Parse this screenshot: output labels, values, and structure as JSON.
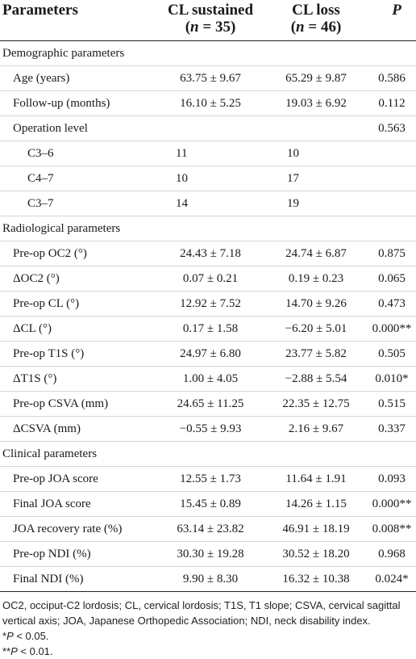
{
  "header": {
    "parameters": "Parameters",
    "cl_sustained": "CL sustained",
    "cl_sustained_n": "(n = 35)",
    "cl_loss": "CL loss",
    "cl_loss_n": "(n = 46)",
    "p": "P"
  },
  "rows": [
    {
      "label": "Demographic parameters",
      "v1": "",
      "v2": "",
      "p": ""
    },
    {
      "label": "Age (years)",
      "v1": "63.75 ± 9.67",
      "v2": "65.29 ± 9.87",
      "p": "0.586"
    },
    {
      "label": "Follow-up (months)",
      "v1": "16.10 ± 5.25",
      "v2": "19.03 ± 6.92",
      "p": "0.112"
    },
    {
      "label": "Operation level",
      "v1": "",
      "v2": "",
      "p": "0.563"
    },
    {
      "label": "C3–6",
      "v1": "11",
      "v2": "10",
      "p": ""
    },
    {
      "label": "C4–7",
      "v1": "10",
      "v2": "17",
      "p": ""
    },
    {
      "label": "C3–7",
      "v1": "14",
      "v2": "19",
      "p": ""
    },
    {
      "label": "Radiological parameters",
      "v1": "",
      "v2": "",
      "p": ""
    },
    {
      "label": "Pre-op OC2 (°)",
      "v1": "24.43 ± 7.18",
      "v2": "24.74 ± 6.87",
      "p": "0.875"
    },
    {
      "label": "ΔOC2 (°)",
      "v1": "0.07 ± 0.21",
      "v2": "0.19 ± 0.23",
      "p": "0.065"
    },
    {
      "label": "Pre-op CL (°)",
      "v1": "12.92 ± 7.52",
      "v2": "14.70 ± 9.26",
      "p": "0.473"
    },
    {
      "label": "ΔCL (°)",
      "v1": "0.17 ± 1.58",
      "v2": "−6.20 ± 5.01",
      "p": "0.000**"
    },
    {
      "label": "Pre-op T1S (°)",
      "v1": "24.97 ± 6.80",
      "v2": "23.77 ± 5.82",
      "p": "0.505"
    },
    {
      "label": "ΔT1S (°)",
      "v1": "1.00 ± 4.05",
      "v2": "−2.88 ± 5.54",
      "p": "0.010*"
    },
    {
      "label": "Pre-op CSVA (mm)",
      "v1": "24.65 ± 11.25",
      "v2": "22.35 ± 12.75",
      "p": "0.515"
    },
    {
      "label": "ΔCSVA (mm)",
      "v1": "−0.55 ± 9.93",
      "v2": "2.16 ± 9.67",
      "p": "0.337"
    },
    {
      "label": "Clinical parameters",
      "v1": "",
      "v2": "",
      "p": ""
    },
    {
      "label": "Pre-op JOA score",
      "v1": "12.55 ± 1.73",
      "v2": "11.64 ± 1.91",
      "p": "0.093"
    },
    {
      "label": "Final JOA score",
      "v1": "15.45 ± 0.89",
      "v2": "14.26 ± 1.15",
      "p": "0.000**"
    },
    {
      "label": "JOA recovery rate (%)",
      "v1": "63.14 ± 23.82",
      "v2": "46.91 ± 18.19",
      "p": "0.008**"
    },
    {
      "label": "Pre-op NDI (%)",
      "v1": "30.30 ± 19.28",
      "v2": "30.52 ± 18.20",
      "p": "0.968"
    },
    {
      "label": "Final NDI (%)",
      "v1": "9.90 ± 8.30",
      "v2": "16.32 ± 10.38",
      "p": "0.024*"
    }
  ],
  "footnotes": {
    "abbreviations": "OC2, occiput-C2 lordosis; CL, cervical lordosis; T1S, T1 slope; CSVA, cervical sagittal vertical axis; JOA, Japanese Orthopedic Association; NDI, neck disability index.",
    "note1_prefix": "*",
    "note1_p": "P",
    "note1_rest": " < 0.05.",
    "note2_prefix": "**",
    "note2_p": "P",
    "note2_rest": " < 0.01."
  }
}
